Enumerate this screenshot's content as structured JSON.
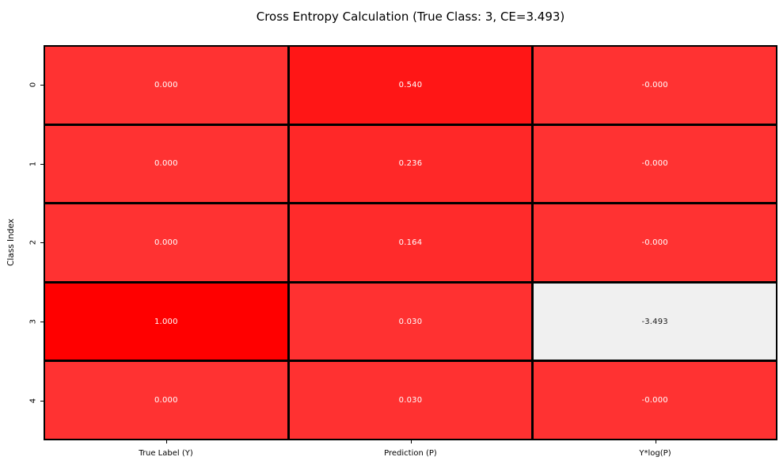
{
  "figure": {
    "title": "Cross Entropy Calculation (True Class: 3, CE=3.493)",
    "ylabel": "Class Index",
    "background_color": "#ffffff"
  },
  "chart_data": {
    "type": "heatmap",
    "title": "Cross Entropy Calculation (True Class: 3, CE=3.493)",
    "xlabel": "",
    "ylabel": "Class Index",
    "x_tick_labels": [
      "True Label (Y)",
      "Prediction (P)",
      "Y*log(P)"
    ],
    "y_tick_labels": [
      "0",
      "1",
      "2",
      "3",
      "4"
    ],
    "true_class": 3,
    "cross_entropy": 3.493,
    "grid_on": false,
    "legend_position": "none",
    "series": [
      {
        "name": "True Label (Y)",
        "values": [
          0.0,
          0.0,
          0.0,
          1.0,
          0.0
        ]
      },
      {
        "name": "Prediction (P)",
        "values": [
          0.54,
          0.236,
          0.164,
          0.03,
          0.03
        ]
      },
      {
        "name": "Y*log(P)",
        "values": [
          -0.0,
          -0.0,
          -0.0,
          -3.493,
          -0.0
        ]
      }
    ],
    "cell_labels": [
      [
        "0.000",
        "0.540",
        "-0.000"
      ],
      [
        "0.000",
        "0.236",
        "-0.000"
      ],
      [
        "0.000",
        "0.164",
        "-0.000"
      ],
      [
        "1.000",
        "0.030",
        "-3.493"
      ],
      [
        "0.000",
        "0.030",
        "-0.000"
      ]
    ],
    "cell_colors": [
      [
        "#ff3232",
        "#ff1616",
        "#ff3232"
      ],
      [
        "#ff3232",
        "#ff2828",
        "#ff3232"
      ],
      [
        "#ff3232",
        "#ff2b2b",
        "#ff3232"
      ],
      [
        "#ff0000",
        "#ff3131",
        "#f0f0f0"
      ],
      [
        "#ff3232",
        "#ff3131",
        "#ff3232"
      ]
    ],
    "cell_text_colors": [
      [
        "#ffffff",
        "#ffffff",
        "#ffffff"
      ],
      [
        "#ffffff",
        "#ffffff",
        "#ffffff"
      ],
      [
        "#ffffff",
        "#ffffff",
        "#ffffff"
      ],
      [
        "#ffffff",
        "#ffffff",
        "#1a1a1a"
      ],
      [
        "#ffffff",
        "#ffffff",
        "#ffffff"
      ]
    ],
    "cell_border_color": "#000000"
  }
}
